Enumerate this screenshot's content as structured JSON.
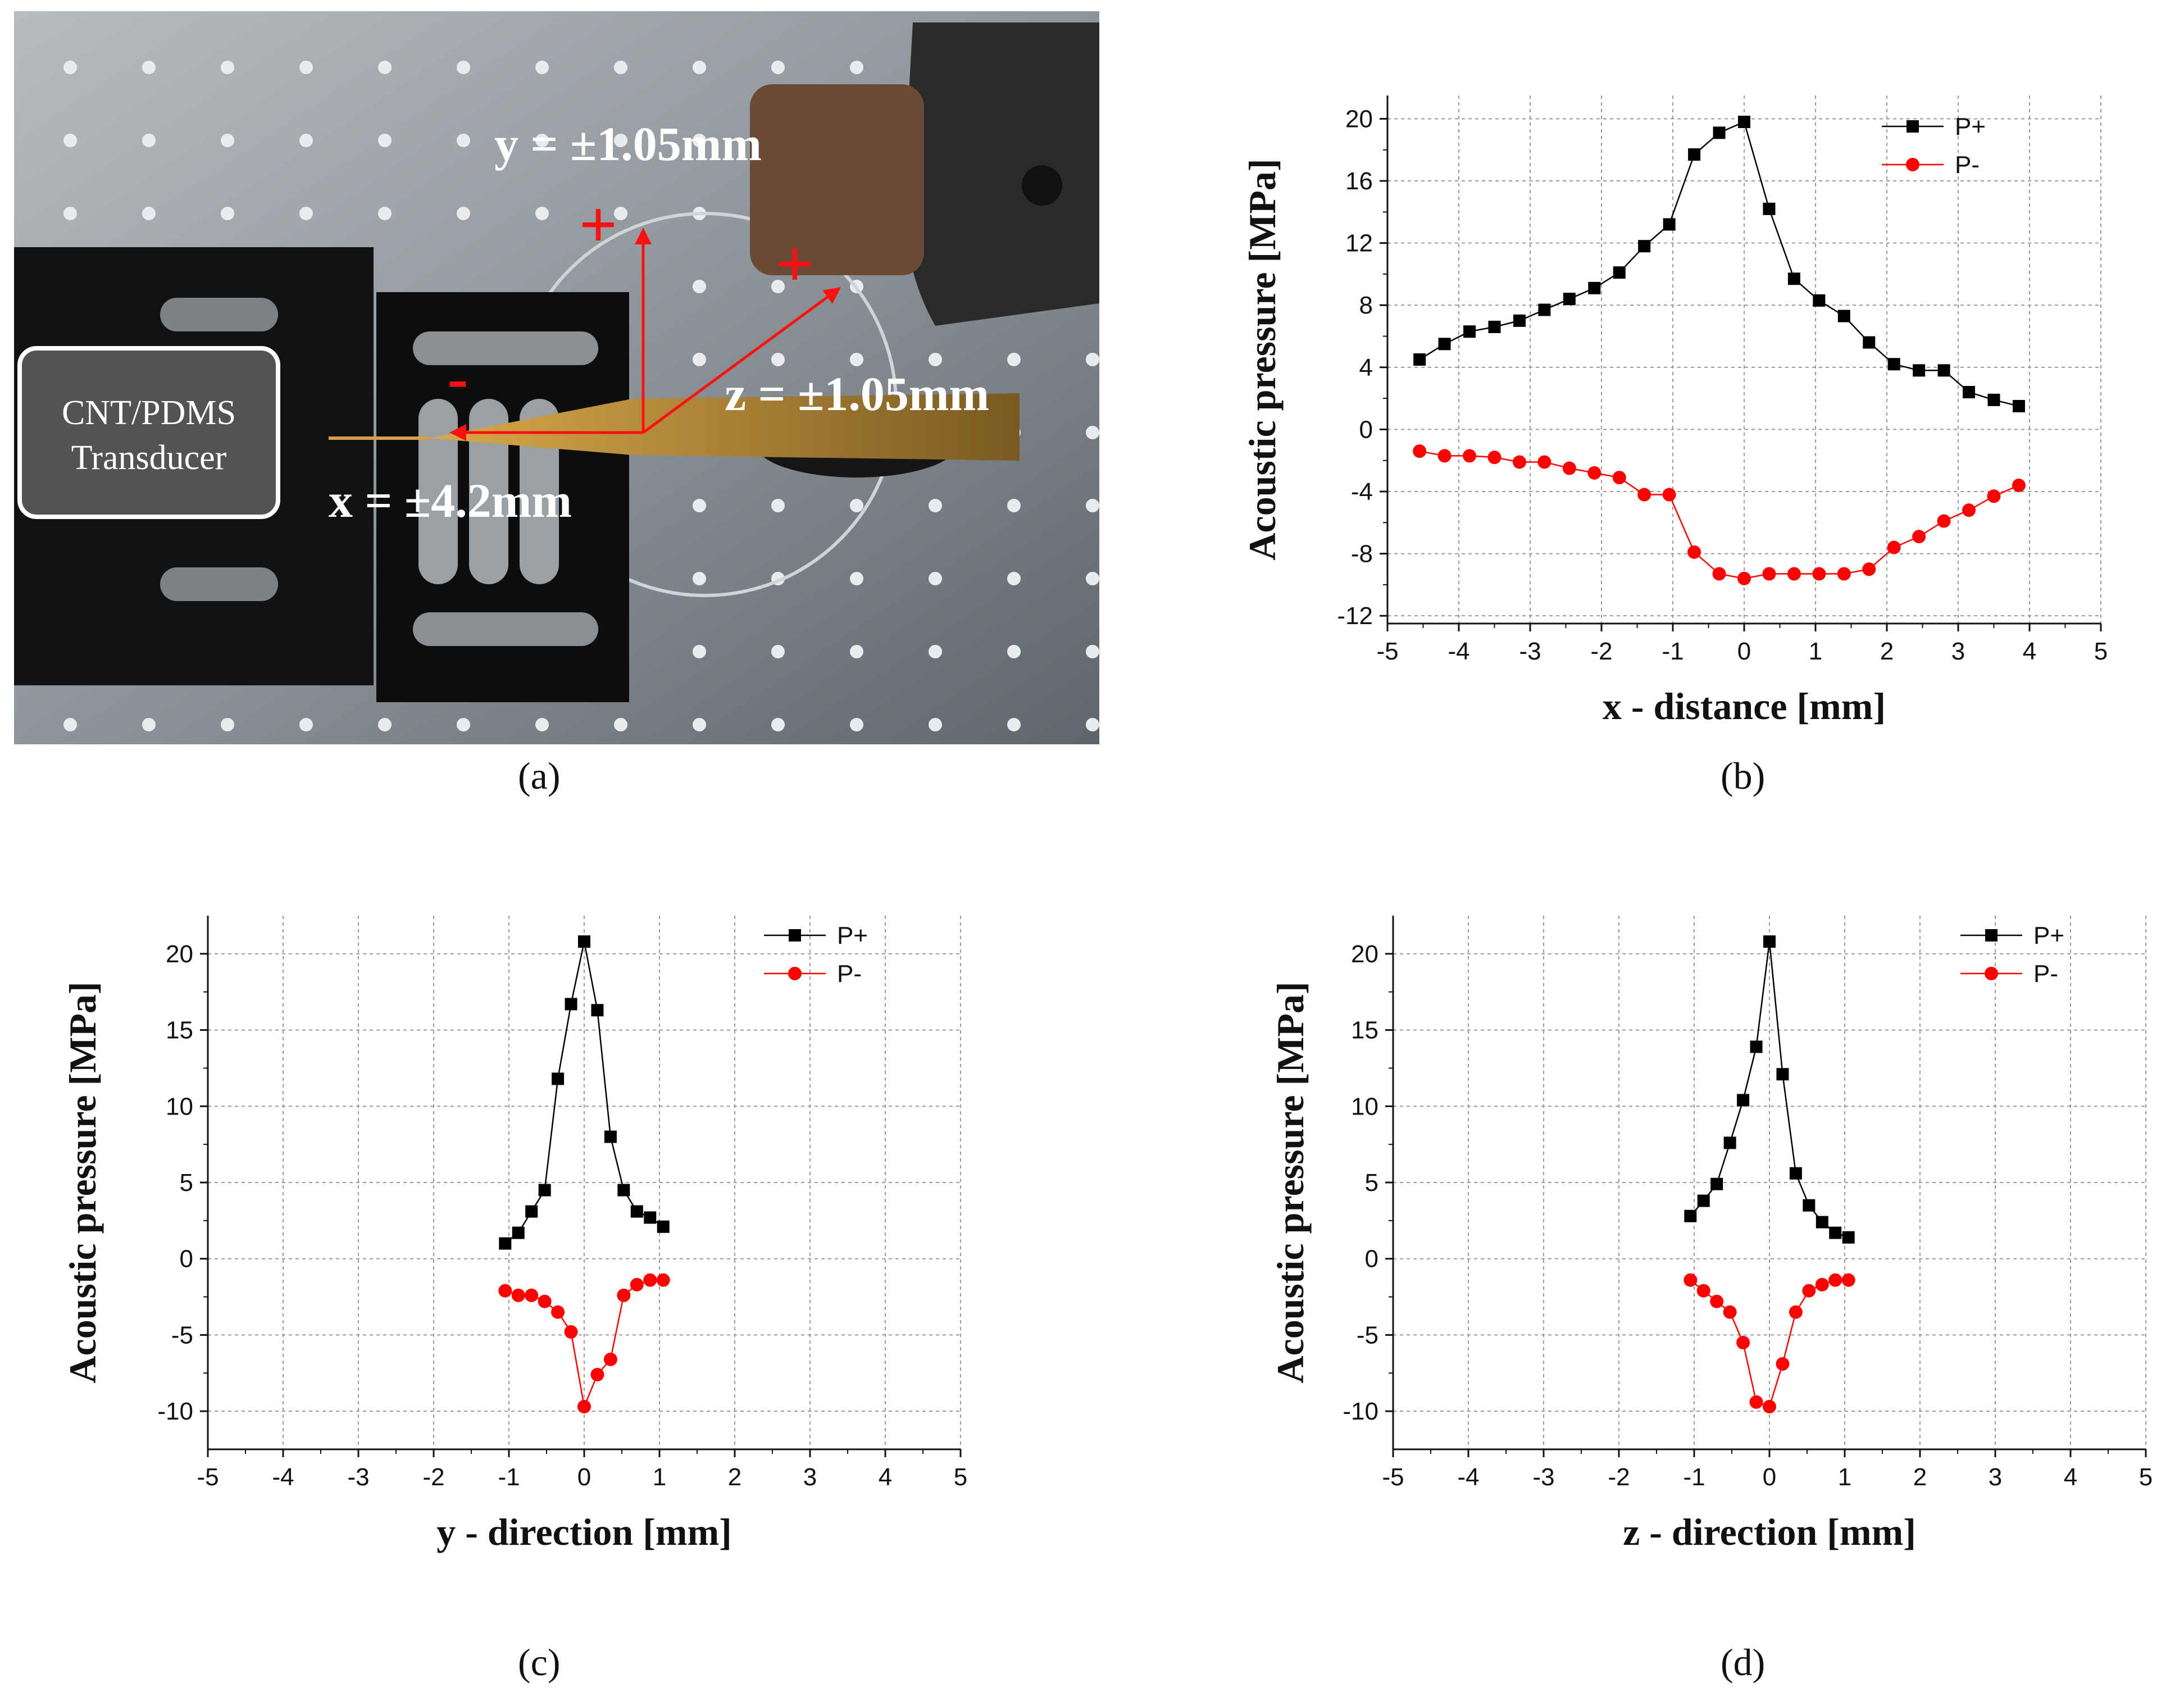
{
  "photo": {
    "labels": {
      "y_range": "y = ±1.05mm",
      "z_range": "z = ±1.05mm",
      "x_range": "x = ±4.2mm",
      "plus": "+",
      "minus": "-",
      "transducer_line1": "CNT/PDMS",
      "transducer_line2": "Transducer"
    }
  },
  "captions": {
    "a": "(a)",
    "b": "(b)",
    "c": "(c)",
    "d": "(d)"
  },
  "colors": {
    "p_plus": "#000000",
    "p_minus": "#ff0000",
    "grid": "#9a9a9a",
    "arrow": "#ff1010"
  },
  "chart_data": [
    {
      "id": "b",
      "type": "line",
      "title": "",
      "xlabel": "x - distance [mm]",
      "ylabel": "Acoustic pressure [MPa]",
      "xlim": [
        -5,
        5
      ],
      "ylim": [
        -12.5,
        21.5
      ],
      "xticks": [
        -5,
        -4,
        -3,
        -2,
        -1,
        0,
        1,
        2,
        3,
        4,
        5
      ],
      "yticks": [
        -12,
        -8,
        -4,
        0,
        4,
        8,
        12,
        16,
        20
      ],
      "legend_position": "top-right",
      "series": [
        {
          "name": "P+",
          "marker": "square",
          "color": "#000000",
          "x": [
            -4.55,
            -4.2,
            -3.85,
            -3.5,
            -3.15,
            -2.8,
            -2.45,
            -2.1,
            -1.75,
            -1.4,
            -1.05,
            -0.7,
            -0.35,
            0,
            0.35,
            0.7,
            1.05,
            1.4,
            1.75,
            2.1,
            2.45,
            2.8,
            3.15,
            3.5,
            3.85
          ],
          "y": [
            4.5,
            5.5,
            6.3,
            6.6,
            7.0,
            7.7,
            8.4,
            9.1,
            10.1,
            11.8,
            13.2,
            17.7,
            19.1,
            19.8,
            14.2,
            9.7,
            8.3,
            7.3,
            5.6,
            4.2,
            3.8,
            3.8,
            2.4,
            1.9,
            1.5
          ]
        },
        {
          "name": "P-",
          "marker": "circle",
          "color": "#ff0000",
          "x": [
            -4.55,
            -4.2,
            -3.85,
            -3.5,
            -3.15,
            -2.8,
            -2.45,
            -2.1,
            -1.75,
            -1.4,
            -1.05,
            -0.7,
            -0.35,
            0,
            0.35,
            0.7,
            1.05,
            1.4,
            1.75,
            2.1,
            2.45,
            2.8,
            3.15,
            3.5,
            3.85
          ],
          "y": [
            -1.4,
            -1.7,
            -1.7,
            -1.8,
            -2.1,
            -2.1,
            -2.5,
            -2.8,
            -3.1,
            -4.2,
            -4.2,
            -7.9,
            -9.3,
            -9.6,
            -9.3,
            -9.3,
            -9.3,
            -9.3,
            -9.0,
            -7.6,
            -6.9,
            -5.9,
            -5.2,
            -4.3,
            -3.6
          ]
        }
      ]
    },
    {
      "id": "c",
      "type": "line",
      "title": "",
      "xlabel": "y - direction [mm]",
      "ylabel": "Acoustic pressure [MPa]",
      "xlim": [
        -5,
        5
      ],
      "ylim": [
        -12.5,
        22.5
      ],
      "xticks": [
        -5,
        -4,
        -3,
        -2,
        -1,
        0,
        1,
        2,
        3,
        4,
        5
      ],
      "yticks": [
        -10,
        -5,
        0,
        5,
        10,
        15,
        20
      ],
      "legend_position": "top-right",
      "series": [
        {
          "name": "P+",
          "marker": "square",
          "color": "#000000",
          "x": [
            -1.05,
            -0.875,
            -0.7,
            -0.525,
            -0.35,
            -0.175,
            0,
            0.175,
            0.35,
            0.525,
            0.7,
            0.875,
            1.05
          ],
          "y": [
            1.0,
            1.7,
            3.1,
            4.5,
            11.8,
            16.7,
            20.8,
            16.3,
            8.0,
            4.5,
            3.1,
            2.7,
            2.1
          ]
        },
        {
          "name": "P-",
          "marker": "circle",
          "color": "#ff0000",
          "x": [
            -1.05,
            -0.875,
            -0.7,
            -0.525,
            -0.35,
            -0.175,
            0,
            0.175,
            0.35,
            0.525,
            0.7,
            0.875,
            1.05
          ],
          "y": [
            -2.1,
            -2.4,
            -2.4,
            -2.8,
            -3.5,
            -4.8,
            -9.7,
            -7.6,
            -6.6,
            -2.4,
            -1.7,
            -1.4,
            -1.4
          ]
        }
      ]
    },
    {
      "id": "d",
      "type": "line",
      "title": "",
      "xlabel": "z - direction [mm]",
      "ylabel": "Acoustic pressure [MPa]",
      "xlim": [
        -5,
        5
      ],
      "ylim": [
        -12.5,
        22.5
      ],
      "xticks": [
        -5,
        -4,
        -3,
        -2,
        -1,
        0,
        1,
        2,
        3,
        4,
        5
      ],
      "yticks": [
        -10,
        -5,
        0,
        5,
        10,
        15,
        20
      ],
      "legend_position": "top-right",
      "series": [
        {
          "name": "P+",
          "marker": "square",
          "color": "#000000",
          "x": [
            -1.05,
            -0.875,
            -0.7,
            -0.525,
            -0.35,
            -0.175,
            0,
            0.175,
            0.35,
            0.525,
            0.7,
            0.875,
            1.05
          ],
          "y": [
            2.8,
            3.8,
            4.9,
            7.6,
            10.4,
            13.9,
            20.8,
            12.1,
            5.6,
            3.5,
            2.4,
            1.7,
            1.4
          ]
        },
        {
          "name": "P-",
          "marker": "circle",
          "color": "#ff0000",
          "x": [
            -1.05,
            -0.875,
            -0.7,
            -0.525,
            -0.35,
            -0.175,
            0,
            0.175,
            0.35,
            0.525,
            0.7,
            0.875,
            1.05
          ],
          "y": [
            -1.4,
            -2.1,
            -2.8,
            -3.5,
            -5.5,
            -9.4,
            -9.7,
            -6.9,
            -3.5,
            -2.1,
            -1.7,
            -1.4,
            -1.4
          ]
        }
      ]
    }
  ]
}
